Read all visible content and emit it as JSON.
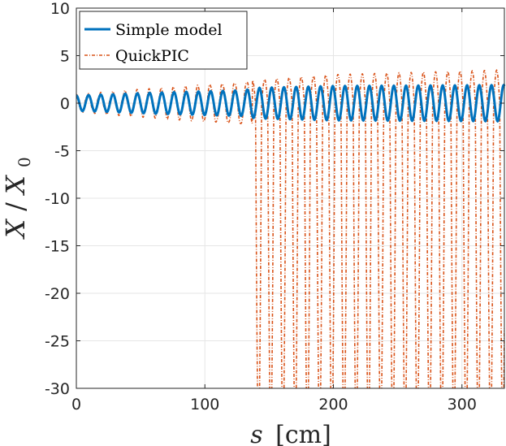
{
  "colors": {
    "simple": "#0072BD",
    "quickpic": "#D95319",
    "axis": "#262626",
    "grid": "#e6e6e6"
  },
  "chart_data": {
    "type": "line",
    "xlabel": "s [cm]",
    "xlabel_var": "s",
    "xlabel_unit": "[cm]",
    "ylabel": "X/X0",
    "ylabel_var": "X",
    "ylabel_den": "X",
    "ylabel_den_sub": "0",
    "xlim": [
      0,
      333
    ],
    "ylim": [
      -30,
      10
    ],
    "xticks": [
      0,
      100,
      200,
      300
    ],
    "yticks": [
      10,
      5,
      0,
      -5,
      -10,
      -15,
      -20,
      -25,
      -30
    ],
    "xtick_labels": [
      "0",
      "100",
      "200",
      "300"
    ],
    "ytick_labels": [
      "10",
      "5",
      "0",
      "-5",
      "-10",
      "-15",
      "-20",
      "-25",
      "-30"
    ],
    "grid": true,
    "legend": {
      "location": "top-left",
      "entries": [
        "Simple model",
        "QuickPIC"
      ]
    },
    "series": [
      {
        "name": "Simple model",
        "style": "solid",
        "period_cm": 9.5,
        "amplitude_points": [
          [
            0,
            0.8
          ],
          [
            60,
            1.1
          ],
          [
            130,
            1.35
          ],
          [
            140,
            1.6
          ],
          [
            200,
            1.8
          ],
          [
            333,
            1.9
          ]
        ]
      },
      {
        "name": "QuickPIC",
        "style": "dash-dot",
        "period_cm": 9.5,
        "amplitude_points": [
          [
            0,
            0.9
          ],
          [
            60,
            1.4
          ],
          [
            120,
            2.2
          ],
          [
            137,
            2.4
          ],
          [
            200,
            3.0
          ],
          [
            333,
            3.5
          ]
        ],
        "envelope_drop_start_cm": 137,
        "envelope_drop_to": -30
      }
    ]
  }
}
